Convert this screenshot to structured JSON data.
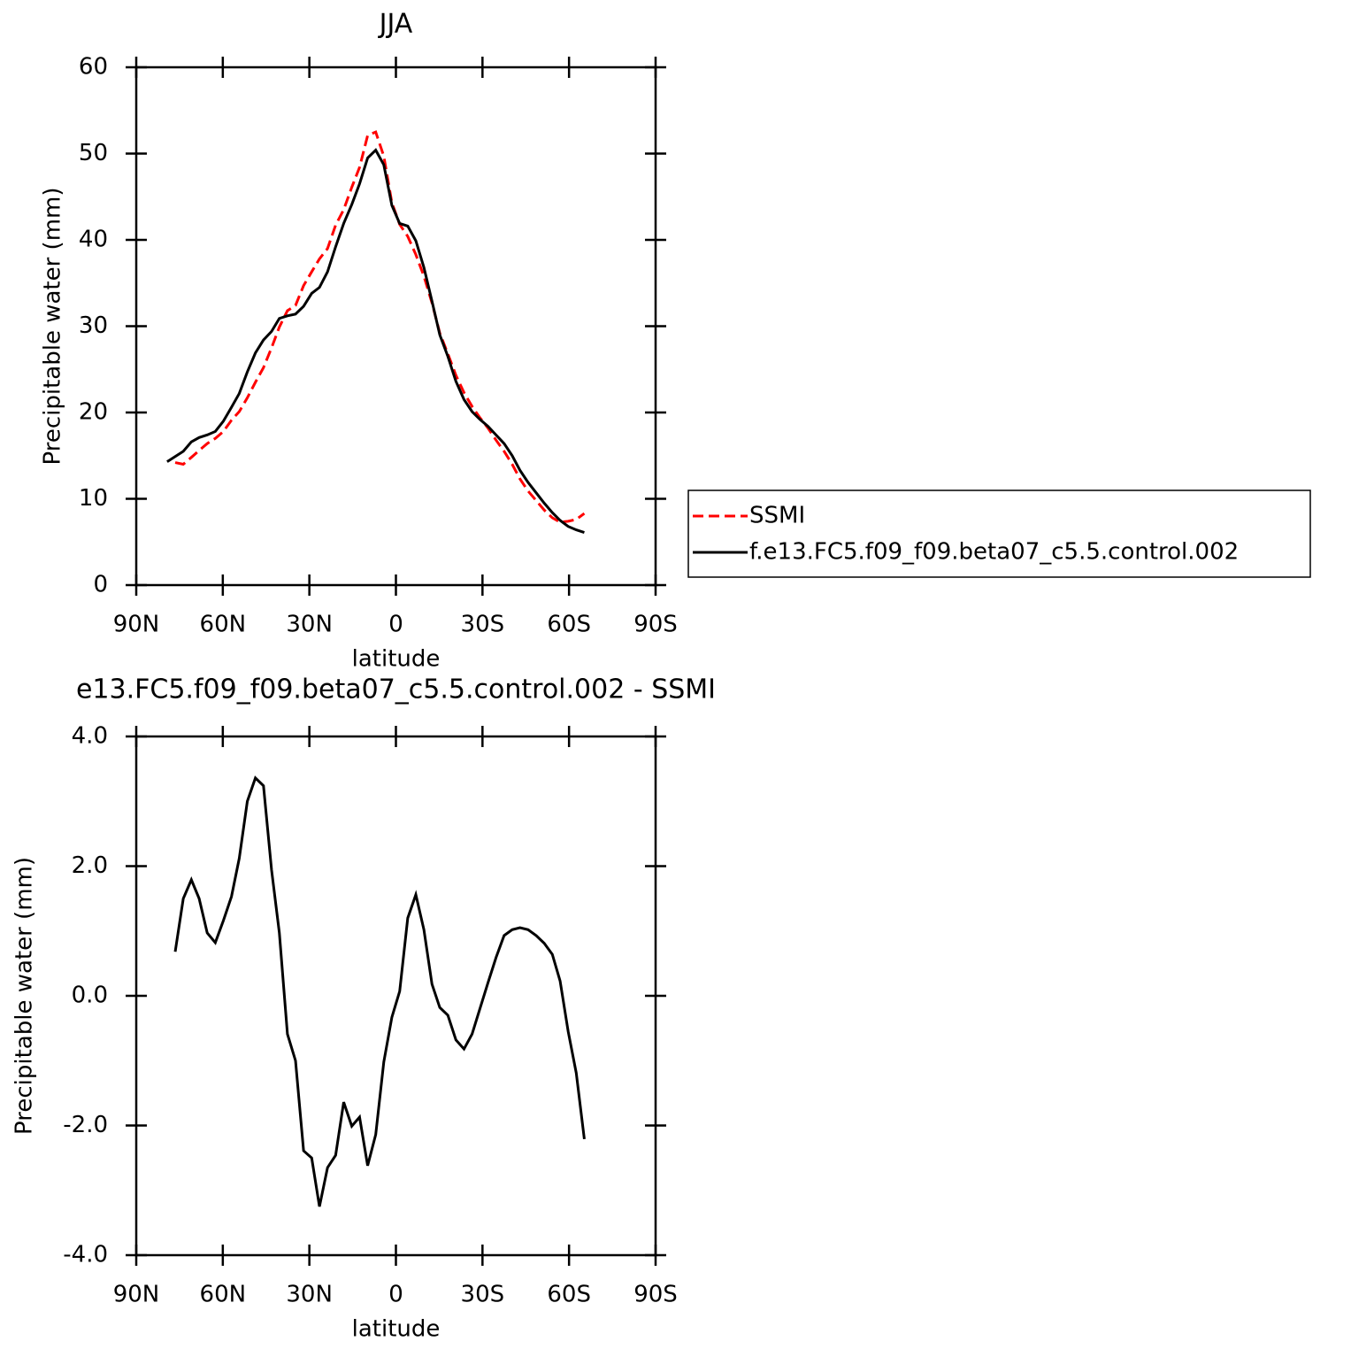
{
  "chart_data": [
    {
      "type": "line",
      "title": "JJA",
      "xlabel": "latitude",
      "ylabel": "Precipitable water (mm)",
      "x": [
        79.3,
        76.5,
        73.7,
        70.9,
        68.2,
        65.4,
        62.6,
        59.8,
        57.0,
        54.3,
        51.5,
        48.7,
        45.9,
        43.1,
        40.4,
        37.6,
        34.8,
        32.0,
        29.2,
        26.5,
        23.7,
        20.9,
        18.1,
        15.3,
        12.6,
        9.8,
        7.0,
        4.2,
        1.4,
        -1.3,
        -4.1,
        -6.9,
        -9.7,
        -12.5,
        -15.2,
        -18.0,
        -20.8,
        -23.6,
        -26.4,
        -29.1,
        -31.9,
        -34.7,
        -37.5,
        -40.3,
        -43.0,
        -45.8,
        -48.6,
        -51.4,
        -54.2,
        -56.9,
        -59.7,
        -62.5,
        -65.3
      ],
      "series": [
        {
          "name": "SSMI",
          "color": "#ff0000",
          "dashed": true,
          "values": [
            null,
            14.2,
            14.0,
            14.8,
            15.6,
            16.4,
            17.0,
            17.8,
            19.1,
            20.1,
            21.7,
            23.5,
            25.2,
            27.5,
            29.9,
            31.8,
            32.4,
            34.7,
            36.3,
            37.8,
            39.0,
            41.7,
            43.5,
            46.1,
            48.4,
            52.1,
            52.5,
            49.7,
            44.3,
            41.8,
            40.4,
            38.3,
            35.8,
            32.7,
            29.2,
            26.8,
            24.3,
            22.3,
            20.7,
            19.4,
            18.2,
            16.8,
            15.5,
            14.0,
            12.3,
            10.9,
            9.8,
            8.7,
            7.8,
            7.3,
            7.4,
            7.6,
            8.3
          ]
        },
        {
          "name": "f.e13.FC5.f09_f09.beta07_c5.5.control.002",
          "color": "#000000",
          "dashed": false,
          "values": [
            14.3,
            14.9,
            15.5,
            16.6,
            17.1,
            17.4,
            17.8,
            19.0,
            20.6,
            22.2,
            24.7,
            26.9,
            28.4,
            29.4,
            30.9,
            31.2,
            31.4,
            32.3,
            33.8,
            34.5,
            36.3,
            39.2,
            41.9,
            44.1,
            46.5,
            49.5,
            50.4,
            48.7,
            44.0,
            41.9,
            41.6,
            39.9,
            36.8,
            32.9,
            29.0,
            26.5,
            23.6,
            21.5,
            20.1,
            19.2,
            18.4,
            17.4,
            16.4,
            15.0,
            13.3,
            11.9,
            10.7,
            9.5,
            8.4,
            7.5,
            6.8,
            6.4,
            6.1
          ]
        }
      ],
      "xlim": [
        90,
        -90
      ],
      "xticks": [
        {
          "value": 90,
          "label": "90N"
        },
        {
          "value": 60,
          "label": "60N"
        },
        {
          "value": 30,
          "label": "30N"
        },
        0,
        {
          "value": -30,
          "label": "30S"
        },
        {
          "value": -60,
          "label": "60S"
        },
        {
          "value": -90,
          "label": "90S"
        }
      ],
      "ylim": [
        0,
        60
      ],
      "yticks": [
        0,
        10,
        20,
        30,
        40,
        50,
        60
      ],
      "legend": "right"
    },
    {
      "type": "line",
      "title": "e13.FC5.f09_f09.beta07_c5.5.control.002 - SSMI",
      "xlabel": "latitude",
      "ylabel": "Precipitable water (mm)",
      "x": [
        76.5,
        73.7,
        70.9,
        68.2,
        65.4,
        62.6,
        59.8,
        57.0,
        54.3,
        51.5,
        48.7,
        45.9,
        43.1,
        40.4,
        37.6,
        34.8,
        32.0,
        29.2,
        26.5,
        23.7,
        20.9,
        18.1,
        15.3,
        12.6,
        9.8,
        7.0,
        4.2,
        1.4,
        -1.3,
        -4.1,
        -6.9,
        -9.7,
        -12.5,
        -15.2,
        -18.0,
        -20.8,
        -23.6,
        -26.4,
        -29.1,
        -31.9,
        -34.7,
        -37.5,
        -40.3,
        -43.0,
        -45.8,
        -48.6,
        -51.4,
        -54.2,
        -56.9,
        -59.7,
        -62.5,
        -65.3
      ],
      "series": [
        {
          "color": "#000000",
          "dashed": false,
          "values": [
            0.68,
            1.5,
            1.79,
            1.5,
            0.97,
            0.82,
            1.16,
            1.53,
            2.12,
            3.0,
            3.36,
            3.24,
            1.94,
            0.97,
            -0.59,
            -1.0,
            -2.39,
            -2.5,
            -3.25,
            -2.65,
            -2.46,
            -1.64,
            -2.01,
            -1.87,
            -2.62,
            -2.14,
            -1.02,
            -0.33,
            0.07,
            1.2,
            1.56,
            1.02,
            0.18,
            -0.18,
            -0.3,
            -0.68,
            -0.82,
            -0.59,
            -0.2,
            0.2,
            0.59,
            0.93,
            1.02,
            1.05,
            1.02,
            0.93,
            0.81,
            0.64,
            0.23,
            -0.55,
            -1.19,
            -2.21
          ]
        }
      ],
      "xlim": [
        90,
        -90
      ],
      "xticks": [
        {
          "value": 90,
          "label": "90N"
        },
        {
          "value": 60,
          "label": "60N"
        },
        {
          "value": 30,
          "label": "30N"
        },
        0,
        {
          "value": -30,
          "label": "30S"
        },
        {
          "value": -60,
          "label": "60S"
        },
        {
          "value": -90,
          "label": "90S"
        }
      ],
      "ylim": [
        -4,
        4
      ],
      "yticks": [
        {
          "value": -4,
          "label": "-4.0"
        },
        {
          "value": -2,
          "label": "-2.0"
        },
        {
          "value": 0,
          "label": "0.0"
        },
        {
          "value": 2,
          "label": "2.0"
        },
        {
          "value": 4,
          "label": "4.0"
        }
      ]
    }
  ]
}
